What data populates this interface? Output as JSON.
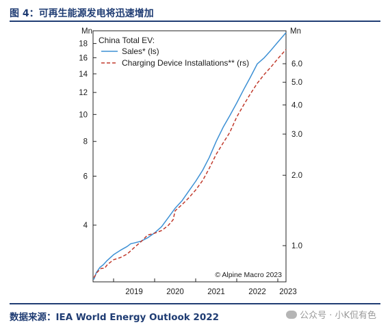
{
  "header": {
    "title": "图 4：可再生能源发电将迅速增加"
  },
  "footer": {
    "source": "数据来源：IEA World Energy Outlook 2022",
    "watermark": "公众号 · 小K侃有色"
  },
  "chart_data": {
    "type": "line",
    "title": "China Total EV:",
    "credit": "© Alpine Macro 2023",
    "left_axis": {
      "unit": "Mn",
      "scale": "log",
      "ticks": [
        4,
        6,
        8,
        10,
        12,
        14,
        16,
        18
      ],
      "range": [
        2.5,
        20
      ]
    },
    "right_axis": {
      "unit": "Mn",
      "scale": "log",
      "ticks": [
        1.0,
        2.0,
        3.0,
        4.0,
        5.0,
        6.0
      ],
      "tick_labels": [
        "1.0",
        "2.0",
        "3.0",
        "4.0",
        "5.0",
        "6.0"
      ],
      "range": [
        0.7,
        8.3
      ]
    },
    "x_axis": {
      "range": [
        2018.5,
        2023.2
      ],
      "ticks": [
        "2019",
        "2020",
        "2021",
        "2022",
        "2023"
      ],
      "year_boundaries": [
        2019,
        2020,
        2021,
        2022,
        2023
      ]
    },
    "series": [
      {
        "name": "Sales* (ls)",
        "axis": "left",
        "color": "#3b8fd4",
        "dash": "solid",
        "x": [
          2018.52,
          2018.58,
          2018.67,
          2018.75,
          2018.83,
          2019.0,
          2019.17,
          2019.33,
          2019.42,
          2019.5,
          2019.67,
          2019.83,
          2020.0,
          2020.17,
          2020.33,
          2020.5,
          2020.67,
          2020.83,
          2021.0,
          2021.17,
          2021.33,
          2021.5,
          2021.67,
          2021.83,
          2022.0,
          2022.17,
          2022.33,
          2022.5,
          2022.67,
          2022.83,
          2023.0,
          2023.2
        ],
        "y": [
          2.55,
          2.7,
          2.82,
          2.88,
          2.97,
          3.13,
          3.25,
          3.35,
          3.43,
          3.45,
          3.5,
          3.6,
          3.75,
          3.95,
          4.25,
          4.6,
          4.9,
          5.3,
          5.75,
          6.3,
          7.0,
          8.0,
          9.0,
          9.9,
          11.0,
          12.3,
          13.6,
          15.2,
          16.0,
          17.0,
          18.2,
          19.7
        ]
      },
      {
        "name": "Charging Device Installations** (rs)",
        "axis": "right",
        "color": "#c0392b",
        "dash": "dashed",
        "x": [
          2018.52,
          2018.6,
          2018.7,
          2018.78,
          2018.85,
          2019.0,
          2019.17,
          2019.33,
          2019.5,
          2019.67,
          2019.83,
          2020.0,
          2020.17,
          2020.33,
          2020.45,
          2020.5,
          2020.67,
          2020.83,
          2021.0,
          2021.17,
          2021.33,
          2021.5,
          2021.67,
          2021.83,
          2022.0,
          2022.17,
          2022.33,
          2022.5,
          2022.67,
          2022.83,
          2023.0,
          2023.2
        ],
        "y": [
          0.73,
          0.77,
          0.8,
          0.8,
          0.83,
          0.87,
          0.89,
          0.92,
          0.98,
          1.04,
          1.11,
          1.13,
          1.16,
          1.22,
          1.29,
          1.41,
          1.5,
          1.6,
          1.73,
          1.9,
          2.14,
          2.46,
          2.75,
          3.05,
          3.55,
          4.0,
          4.45,
          4.95,
          5.4,
          5.8,
          6.3,
          6.9
        ]
      }
    ]
  }
}
